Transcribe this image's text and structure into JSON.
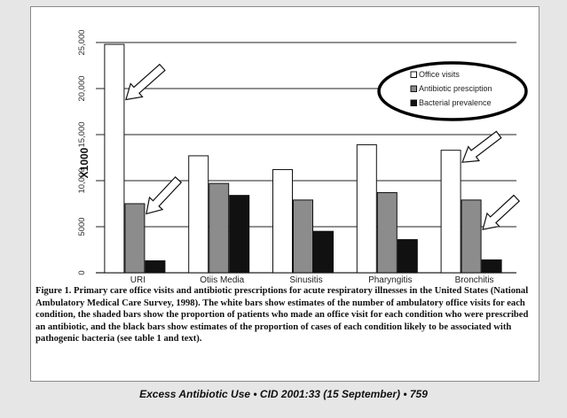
{
  "chart_data": {
    "type": "bar",
    "categories": [
      "URI",
      "Otiis Media",
      "Sinusitis",
      "Pharyngitis",
      "Bronchitis"
    ],
    "series": [
      {
        "name": "Office visits",
        "values": [
          24800,
          12700,
          11200,
          13900,
          13300
        ],
        "color": "#ffffff"
      },
      {
        "name": "Antibiotic prescription",
        "values": [
          7500,
          9700,
          7900,
          8700,
          7900
        ],
        "color": "#8c8c8c"
      },
      {
        "name": "Bacterial prevalence",
        "values": [
          1300,
          8400,
          4500,
          3600,
          1400
        ],
        "color": "#111111"
      }
    ],
    "legend_labels": [
      "Office visits",
      "Antibiotic presciption",
      "Bacterial prevalence"
    ],
    "ylabel": "X1000",
    "yticks": [
      "0",
      "5000",
      "10,000",
      "15,000",
      "20,000",
      "25,000"
    ],
    "ytick_values": [
      0,
      5000,
      10000,
      15000,
      20000,
      25000
    ],
    "ylim": [
      0,
      25000
    ],
    "grid": true,
    "legend_position": "top-right, circled",
    "arrows_point_to": [
      "URI office visits",
      "URI antibiotic prescription",
      "Bronchitis office visits",
      "Bronchitis antibiotic prescription"
    ]
  },
  "caption": "Figure 1. Primary care office visits and antibiotic prescriptions for acute respiratory illnesses in the United States (National Ambulatory Medical Care Survey, 1998). The white bars show estimates of the number of ambulatory office visits for each condition, the shaded bars show the proportion of patients who made an office visit for each condition who were prescribed an antibiotic, and the black bars show estimates of the proportion of cases of each condition likely to be associated with pathogenic bacteria (see table 1 and text).",
  "citation": "Excess Antibiotic Use • CID 2001:33 (15 September) • 759"
}
